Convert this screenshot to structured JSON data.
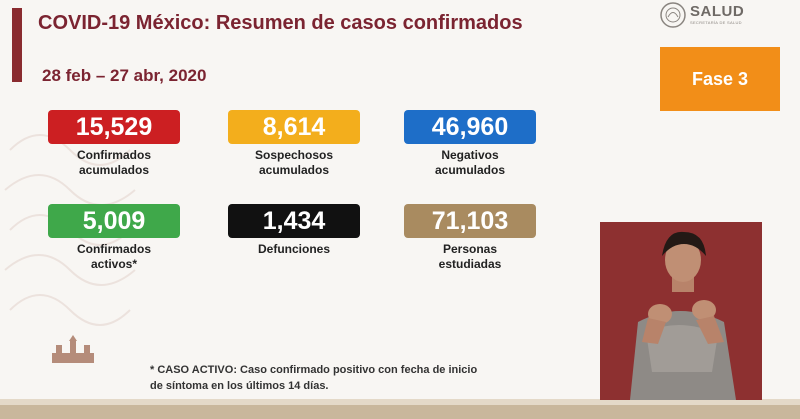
{
  "header": {
    "title": "COVID-19 México: Resumen de casos confirmados",
    "date_range": "28 feb – 27 abr, 2020"
  },
  "logo": {
    "text": "SALUD",
    "subtitle": "SECRETARÍA DE SALUD"
  },
  "phase_badge": {
    "label": "Fase 3",
    "color": "#f28e18"
  },
  "stats": [
    {
      "value": "15,529",
      "label_line1": "Confirmados",
      "label_line2": "acumulados",
      "color": "#cc1f22"
    },
    {
      "value": "8,614",
      "label_line1": "Sospechosos",
      "label_line2": "acumulados",
      "color": "#f3ae1c"
    },
    {
      "value": "46,960",
      "label_line1": "Negativos",
      "label_line2": "acumulados",
      "color": "#1e6ec8"
    },
    {
      "value": "5,009",
      "label_line1": "Confirmados",
      "label_line2": "activos*",
      "color": "#3fa84a"
    },
    {
      "value": "1,434",
      "label_line1": "Defunciones",
      "label_line2": "",
      "color": "#111111"
    },
    {
      "value": "71,103",
      "label_line1": "Personas",
      "label_line2": "estudiadas",
      "color": "#a98b60"
    }
  ],
  "footnote": {
    "line1": "* CASO ACTIVO: Caso confirmado positivo con fecha de inicio",
    "line2": "de síntoma en los últimos 14 días."
  }
}
